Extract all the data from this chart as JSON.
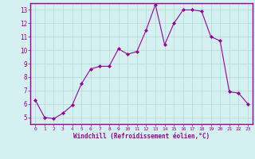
{
  "x": [
    0,
    1,
    2,
    3,
    4,
    5,
    6,
    7,
    8,
    9,
    10,
    11,
    12,
    13,
    14,
    15,
    16,
    17,
    18,
    19,
    20,
    21,
    22,
    23
  ],
  "y": [
    6.3,
    5.0,
    4.9,
    5.3,
    5.9,
    7.5,
    8.6,
    8.8,
    8.8,
    10.1,
    9.7,
    9.9,
    11.5,
    13.4,
    10.4,
    12.0,
    13.0,
    13.0,
    12.9,
    11.0,
    10.7,
    6.9,
    6.8,
    6.0
  ],
  "line_color": "#990099",
  "marker": "D",
  "marker_size": 2,
  "bg_color": "#d4f0f0",
  "grid_color": "#b0d8d8",
  "xlabel": "Windchill (Refroidissement éolien,°C)",
  "xlim": [
    -0.5,
    23.5
  ],
  "ylim": [
    4.5,
    13.5
  ],
  "xticks": [
    0,
    1,
    2,
    3,
    4,
    5,
    6,
    7,
    8,
    9,
    10,
    11,
    12,
    13,
    14,
    15,
    16,
    17,
    18,
    19,
    20,
    21,
    22,
    23
  ],
  "yticks": [
    5,
    6,
    7,
    8,
    9,
    10,
    11,
    12,
    13
  ],
  "tick_color": "#990099",
  "label_color": "#990099",
  "axis_color": "#990099",
  "spine_color": "#990099"
}
